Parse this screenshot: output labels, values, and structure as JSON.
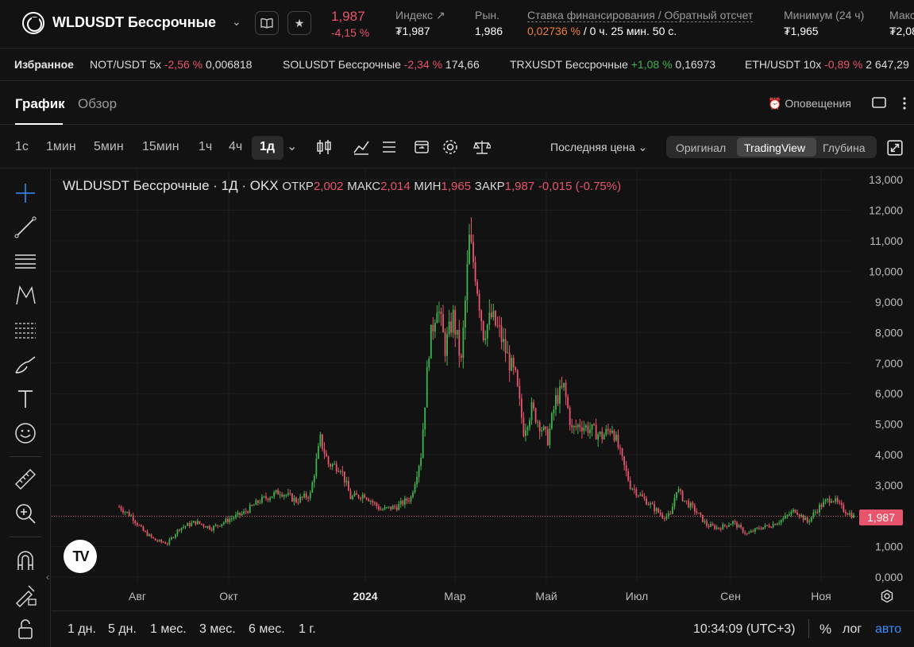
{
  "header": {
    "instrument": "WLDUSDT Бессрочные",
    "last_price": "1,987",
    "change": "-4,15 %",
    "stats": [
      {
        "label": "Индекс",
        "value": "₮1,987"
      },
      {
        "label": "Рын.",
        "value": "1,986"
      },
      {
        "label": "Ставка финансирования / Обратный отсчет",
        "rate": "0,02736 %",
        "countdown": " / 0 ч. 25 мин. 50 с."
      },
      {
        "label": "Минимум (24 ч)",
        "value": "₮1,965"
      },
      {
        "label": "Макс",
        "value": "₮2,08"
      }
    ]
  },
  "favorites": {
    "title": "Избранное",
    "items": [
      {
        "name": "NOT/USDT 5x",
        "change": "-2,56 %",
        "price": "0,006818",
        "dir": "neg"
      },
      {
        "name": "SOLUSDT Бессрочные",
        "change": "-2,34 %",
        "price": "174,66",
        "dir": "neg"
      },
      {
        "name": "TRXUSDT Бессрочные",
        "change": "+1,08 %",
        "price": "0,16973",
        "dir": "pos"
      },
      {
        "name": "ETH/USDT 10x",
        "change": "-0,89 %",
        "price": "2 647,29",
        "dir": "neg"
      }
    ]
  },
  "tabs": {
    "chart": "График",
    "overview": "Обзор",
    "alerts": "Оповещения"
  },
  "toolbar": {
    "timeframes": [
      "1с",
      "1мин",
      "5мин",
      "15мин",
      "1ч",
      "4ч",
      "1д"
    ],
    "price_type": "Последняя цена",
    "views": [
      "Оригинал",
      "TradingView",
      "Глубина"
    ],
    "active_view": "TradingView"
  },
  "legend": {
    "title": "WLDUSDT Бессрочные · 1Д · OKX",
    "open_label": "ОТКР",
    "open": "2,002",
    "high_label": "МАКС",
    "high": "2,014",
    "low_label": "МИН",
    "low": "1,965",
    "close_label": "ЗАКР",
    "close": "1,987",
    "delta": "-0,015 (-0.75%)"
  },
  "chart_data": {
    "type": "candlestick",
    "y_ticks": [
      "13,000",
      "12,000",
      "11,000",
      "10,000",
      "9,000",
      "8,000",
      "7,000",
      "6,000",
      "5,000",
      "4,000",
      "3,000",
      "2,000",
      "1,000",
      "0,000"
    ],
    "x_ticks": [
      "Авг",
      "Окт",
      "2024",
      "Мар",
      "Май",
      "Июл",
      "Сен",
      "Ноя"
    ],
    "ylim": [
      0,
      13
    ],
    "current_price": "1,987",
    "close_trend": [
      [
        0,
        2.3
      ],
      [
        6,
        2.0
      ],
      [
        12,
        1.5
      ],
      [
        18,
        1.2
      ],
      [
        24,
        1.1
      ],
      [
        30,
        1.6
      ],
      [
        38,
        1.8
      ],
      [
        46,
        1.6
      ],
      [
        55,
        1.9
      ],
      [
        62,
        2.1
      ],
      [
        70,
        2.5
      ],
      [
        80,
        2.8
      ],
      [
        88,
        2.5
      ],
      [
        95,
        2.7
      ],
      [
        100,
        4.5
      ],
      [
        104,
        3.7
      ],
      [
        110,
        3.6
      ],
      [
        115,
        2.6
      ],
      [
        122,
        2.7
      ],
      [
        130,
        2.2
      ],
      [
        138,
        2.3
      ],
      [
        145,
        2.6
      ],
      [
        150,
        4.0
      ],
      [
        154,
        7.5
      ],
      [
        158,
        9.0
      ],
      [
        162,
        7.5
      ],
      [
        166,
        8.5
      ],
      [
        170,
        7.0
      ],
      [
        174,
        11.0
      ],
      [
        177,
        10.0
      ],
      [
        181,
        8.0
      ],
      [
        185,
        8.5
      ],
      [
        189,
        8.0
      ],
      [
        193,
        7.2
      ],
      [
        197,
        6.5
      ],
      [
        201,
        4.8
      ],
      [
        205,
        5.5
      ],
      [
        209,
        5.0
      ],
      [
        213,
        4.5
      ],
      [
        217,
        5.8
      ],
      [
        221,
        6.2
      ],
      [
        225,
        4.8
      ],
      [
        229,
        5.0
      ],
      [
        235,
        4.8
      ],
      [
        240,
        4.6
      ],
      [
        245,
        4.9
      ],
      [
        250,
        3.8
      ],
      [
        254,
        3.0
      ],
      [
        260,
        2.6
      ],
      [
        265,
        2.3
      ],
      [
        270,
        2.0
      ],
      [
        274,
        2.0
      ],
      [
        277,
        2.9
      ],
      [
        281,
        2.5
      ],
      [
        286,
        2.2
      ],
      [
        292,
        1.7
      ],
      [
        298,
        1.6
      ],
      [
        305,
        1.8
      ],
      [
        312,
        1.4
      ],
      [
        318,
        1.6
      ],
      [
        324,
        1.7
      ],
      [
        330,
        1.9
      ],
      [
        336,
        2.2
      ],
      [
        342,
        1.8
      ],
      [
        348,
        2.3
      ],
      [
        354,
        2.6
      ],
      [
        360,
        2.2
      ],
      [
        365,
        1.99
      ]
    ]
  },
  "bottom": {
    "ranges": [
      "1 дн.",
      "5 дн.",
      "1 мес.",
      "3 мес.",
      "6 мес.",
      "1 г."
    ],
    "clock": "10:34:09 (UTC+3)",
    "percent": "%",
    "log": "лог",
    "auto": "авто"
  },
  "colors": {
    "up": "#3fb44d",
    "down": "#e8546c",
    "accent": "#3d8bff"
  }
}
